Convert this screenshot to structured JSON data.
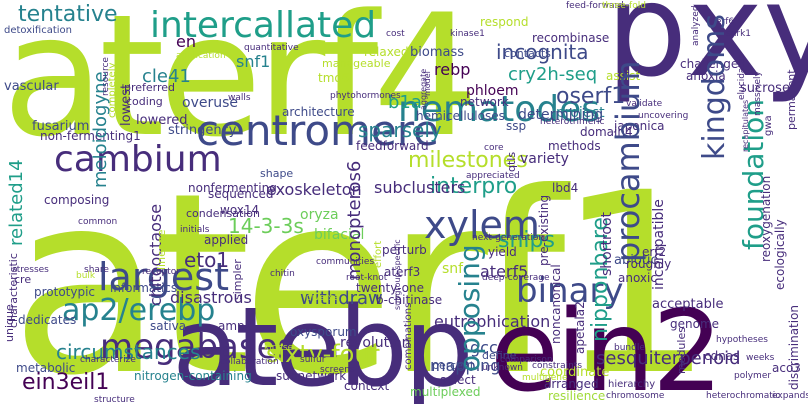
{
  "palette": {
    "lime": "#b5de2b",
    "green": "#6ccd5a",
    "teal": "#1f9e89",
    "cyan": "#26828e",
    "blue": "#3e4a89",
    "navy": "#472d7b",
    "purple": "#440154",
    "light": "#a0da39"
  },
  "words": {
    "aterf1": "aterf1",
    "aterf4": "aterf4",
    "pxy": "pxy",
    "atebp": "atebp",
    "ein2": "ein2",
    "centromere": "centromere",
    "intercalated": "intercallated",
    "nematodes": "nematodes",
    "cambium": "cambium",
    "xylem": "xylem",
    "largest": "largest",
    "binary": "binary",
    "megabases": "megabases",
    "ap2_erebp": "ap2/erebp",
    "procambium": "procambium",
    "kingdoms": "kingdoms",
    "foundation": "foundation",
    "opposing": "opposing",
    "tentative": "tentative",
    "incognita": "incognita",
    "cry2h_seq": "cry2h-seq",
    "oserf1": "oserf1",
    "sixty_four": "sixty-four",
    "circumstances": "circumstances",
    "ein3eil1": "ein3eil1",
    "sesquiterpenoid": "sesquiterpenoid",
    "nipponbare": "nipponbare",
    "related14": "related14",
    "meloidogyne": "meloidogyne",
    "cle41": "cle41",
    "sparsely": "sparsely",
    "milestones": "milestones",
    "interpro": "interpro",
    "snips": "snips",
    "b1a": "b1a",
    "monopteros6": "monopteros6",
    "chitooctaose": "chitooctaose",
    "eto1": "eto1",
    "withdraw": "withdraw",
    "exoskeleton": "exoskeleton",
    "subclusters": "subclusters",
    "disastrous": "disastrous",
    "eutrophication": "eutrophication",
    "aterf5": "aterf5",
    "gcc": "gcc",
    "mapping": "mapping",
    "en": "en",
    "snf1": "snf1",
    "rebp": "rebp",
    "project": "project",
    "phloem": "phloem",
    "biomass": "biomass",
    "overuse": "overuse",
    "lowered": "lowered",
    "fusarium": "fusarium",
    "stringency": "stringency",
    "architecture": "architecture",
    "feedforward": "feedforward",
    "hemicelluloses": "hemicelluloses",
    "network": "network",
    "determining": "determining",
    "methods": "methods",
    "variety": "variety",
    "domain4": "domain4",
    "japonica": "japonica",
    "anoxia": "anoxia",
    "challenge": "challenge",
    "sucrose": "sucrose",
    "permanent": "permanent",
    "non_fermenting1": "non-fermenting1",
    "nonfermenting": "nonfermenting",
    "shape": "shape",
    "sequenced": "sequenced",
    "condensation": "condensation",
    "wox14": "wox14",
    "14_3_3s": "14-3-3s",
    "oryza": "oryza",
    "bifacial": "bifacial",
    "applied": "applied",
    "lineage": "lineage",
    "composing": "composing",
    "characteristic": "characteristic",
    "metabolic": "metabolic",
    "dedicates": "dedicates",
    "prototypic": "prototypic",
    "informatics": "informatics",
    "ampk": "ampk",
    "sativa": "sativa",
    "oxysporum": "oxysporum",
    "revolution": "revolution",
    "nitrogen_containing": "nitrogen-containing",
    "subnetwork": "subnetwork",
    "context": "context",
    "multiplexed": "multiplexed",
    "select": "select",
    "percent": "percent",
    "twenty_one": "twenty-one",
    "b_chitinase": "b-chitinase",
    "snf": "snf",
    "perturb": "perturb",
    "aterf3": "aterf3",
    "yield": "yield",
    "abiotic": "abiotic",
    "anoxic": "anoxic",
    "acceptable": "acceptable",
    "genome": "genome",
    "modules": "modules",
    "cdnas": "cdnas",
    "coordinate": "coordinate",
    "arranged": "arranged",
    "resilience": "resilience",
    "shortroot": "shortroot",
    "incompatible": "incompatible",
    "lbd4": "lbd4",
    "roughly": "roughly",
    "erf2": "erf2",
    "reoxygenation": "reoxygenation",
    "ecologically": "ecologically",
    "discrimination": "discrimination",
    "aco3": "aco3",
    "pre_existing": "pre-existing",
    "noncanonical": "noncanonical",
    "apetala2": "apetala2",
    "define": "define",
    "vascular": "vascular",
    "detoxification": "detoxification",
    "preferred": "preferred",
    "coding": "coding",
    "respond": "respond",
    "recombinase": "recombinase",
    "contacts": "contacts",
    "relaxed": "relaxed",
    "manageable": "manageable",
    "tmo6": "tmo6",
    "ssp": "ssp",
    "assist": "assist",
    "feed_forward": "feed-forward",
    "three_fold": "three-fold",
    "kinase1": "kinase1",
    "common": "common",
    "share": "share",
    "bulk": "bulk",
    "stresses": "stresses",
    "cre": "cre",
    "unique": "unique",
    "initials": "initials",
    "receptor": "receptor",
    "simpler": "simpler",
    "chitin": "chitin",
    "communities": "communities",
    "diverse": "diverse",
    "root_knot": "root-knot",
    "kinase": "kinase",
    "sulfur": "sulfur",
    "screens": "screens",
    "combinations": "combinations",
    "collaboration": "collaboration",
    "unknown": "unknown",
    "comparison": "comparison",
    "structure": "structure",
    "characterize": "characterize",
    "multigene": "multigene",
    "constraints": "constraints",
    "hierarchy": "hierarchy",
    "chromosome": "chromosome",
    "heterochromatic": "heterochromatic",
    "polymer": "polymer",
    "bundle": "bundle",
    "weeks": "weeks",
    "hypotheses": "hypotheses",
    "expands": "expands",
    "erf6": "erf6",
    "snrk1": "snrk1",
    "validate": "validate",
    "uncovering": "uncovering",
    "heterotrimeric": "heterotrimeric",
    "quantitative": "quantitative",
    "application": "application",
    "cost": "cost",
    "model": "model",
    "aggregate": "aggregate",
    "phytohormones": "phytohormones",
    "walls": "walls",
    "lowest": "lowest",
    "completely": "completely",
    "resource": "resource",
    "next_generation": "next-generation",
    "deep_coverage": "deep-coverage",
    "subgroup_specific": "subgroup-specific",
    "appreciated": "appreciated",
    "qtls": "qtls",
    "core": "core",
    "massively": "massively",
    "elucidates": "elucidates",
    "recapitulates": "recapitulates",
    "analyzed": "analyzed",
    "gwa": "gwa",
    "cbp": "cbp",
    "effort": "effort",
    "shift": "shift",
    "x2x": "x2x"
  }
}
